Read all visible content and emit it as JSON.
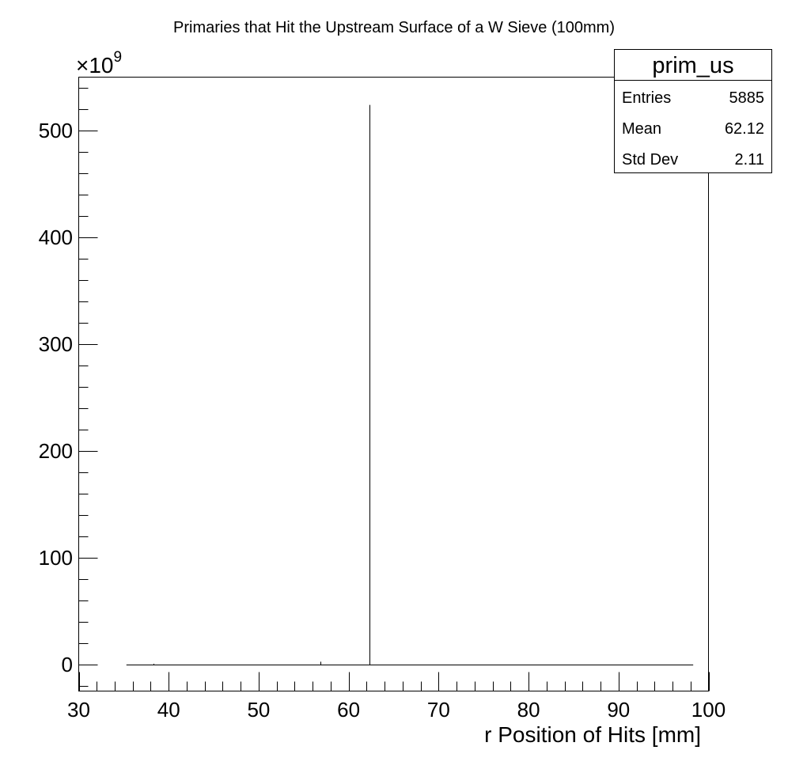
{
  "chart_data": {
    "type": "histogram",
    "title": "Primaries that Hit the Upstream Surface of a W Sieve (100mm)",
    "xlabel": "r Position of Hits [mm]",
    "ylabel": "",
    "y_exponent_label": "×10",
    "y_exponent_power": "9",
    "xlim": [
      30,
      100
    ],
    "ylim": [
      -25,
      550
    ],
    "x_major_ticks": [
      30,
      40,
      50,
      60,
      70,
      80,
      90,
      100
    ],
    "y_major_ticks": [
      0,
      100,
      200,
      300,
      400,
      500
    ],
    "y_tick_labels": [
      "0",
      "100",
      "200",
      "300",
      "400",
      "500"
    ],
    "x_tick_labels": [
      "30",
      "40",
      "50",
      "60",
      "70",
      "80",
      "90",
      "100"
    ],
    "baseline_range": [
      35.3,
      98.3
    ],
    "series": [
      {
        "x": [
          38.3,
          56.9,
          62.3
        ],
        "y": [
          0.6,
          2.5,
          524
        ]
      }
    ],
    "stats_box": {
      "name": "prim_us",
      "rows": [
        {
          "label": "Entries",
          "value": "5885"
        },
        {
          "label": "Mean",
          "value": "62.12"
        },
        {
          "label": "Std Dev",
          "value": "2.11"
        }
      ]
    }
  }
}
